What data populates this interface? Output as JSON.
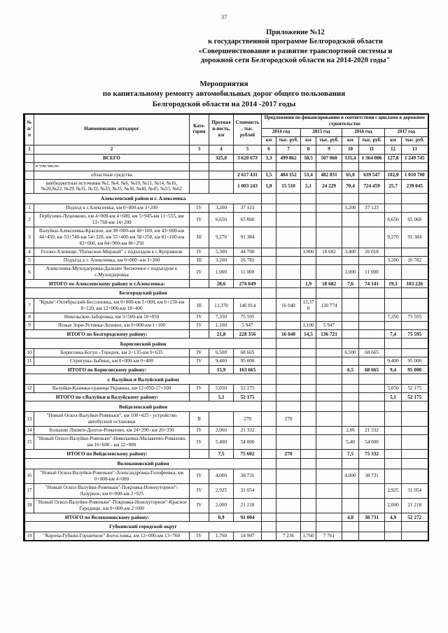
{
  "page": {
    "number": "37"
  },
  "header": {
    "appendix_lines": [
      "Приложение №12",
      "к государственной программе Белгородской области",
      "«Совершенствование и развитие транспортной системы и",
      "дорожной сети  Белгородской области на 2014-2020 годы\""
    ],
    "title_lines": [
      "Мероприятия",
      "по капитальному ремонту автомобильных дорог общего пользования",
      "Белгородской области на 2014 -2017 годы"
    ]
  },
  "table": {
    "headers": {
      "num": "№ п/п",
      "name": "Наименование автодорог",
      "category": "Кате-гория",
      "length": "Протяжен-ность, км",
      "cost": "Стоимость, тыс. рублей",
      "finance_group": "Предложения по финансированию в соответствии с циклами в дорожном строительстве",
      "years": [
        "2014 год",
        "2015 год",
        "2016 год",
        "2017 год"
      ],
      "km": "км",
      "rub": "тыс. руб.",
      "col_numbers": [
        "1",
        "2",
        "3",
        "4",
        "5",
        "6",
        "7",
        "8",
        "9",
        "10",
        "11",
        "12",
        "13"
      ]
    },
    "rows": [
      {
        "type": "total",
        "num": "",
        "name": "ВСЕГО",
        "cat": "",
        "len": "325,0",
        "cost": "3 620 673",
        "y2014": [
          "3,3",
          "499 862"
        ],
        "y2015": [
          "58,5",
          "507 060"
        ],
        "y2016": [
          "135,4",
          "1 364 006"
        ],
        "y2017": [
          "127,8",
          "1 249 745"
        ]
      },
      {
        "type": "note",
        "name": "в том числе:"
      },
      {
        "type": "sub",
        "name": "областные средства",
        "cost": "2 617 431",
        "y2014": [
          "1,5",
          "484 352"
        ],
        "y2015": [
          "53,4",
          "482 831"
        ],
        "y2016": [
          "65,0",
          "639 547"
        ],
        "y2017": [
          "102,0",
          "1 010 700"
        ]
      },
      {
        "type": "sub",
        "name": "внебюджетные источники №1, №4, №6, №10, №11, №14, №16, №20,№22, №29, №31, №32, №33, №35, №36, №40, №45, №55, №62",
        "cost": "1 003 243",
        "y2014": [
          "1,8",
          "15 510"
        ],
        "y2015": [
          "5,1",
          "24 229"
        ],
        "y2016": [
          "70,4",
          "724 459"
        ],
        "y2017": [
          "25,7",
          "239 045"
        ]
      },
      {
        "type": "section",
        "name": "Алексеевский район и г. Алексеевка"
      },
      {
        "type": "data",
        "num": "1",
        "name": "Подход к г.Алексеевка, км 0+000-км 3+200",
        "cat": "IV",
        "len": "3,200",
        "cost": "37 123",
        "y2016": [
          "3,200",
          "37 123"
        ]
      },
      {
        "type": "data",
        "num": "2",
        "name": "Гербузово-Луценково, км 4+000-км 4+600, км 5+945-км 11+555, км 13+760-км 14+200",
        "cat": "IV",
        "len": "6,650",
        "cost": "65 060",
        "y2017": [
          "6,650",
          "65 060"
        ]
      },
      {
        "type": "data",
        "num": "3",
        "name": "Валуйки-Алексеевка-Красное,  км 38+000-км 40+100, км 43+000-км 44+450, км 53+740-км 54+320, км 55+400-км 58+250, км 81+100-км 82+060, км 84+900-км 86+250",
        "cat": "III",
        "len": "9,270",
        "cost": "91 384",
        "y2017": [
          "9,270",
          "91 384"
        ]
      },
      {
        "type": "data",
        "num": "4",
        "name": "Гезово-Хлевище-\"Попасное-Мирный\" с подъездом к с.Куприянов",
        "cat": "IV",
        "len": "5,300",
        "cost": "44 700",
        "y2015": [
          "1,900",
          "18 682"
        ],
        "y2016": [
          "3,400",
          "26 018"
        ]
      },
      {
        "type": "data",
        "num": "5",
        "name": "Подъезд к г. Алексеевка, км 0+000 -км 3+200",
        "cat": "III",
        "len": "3,200",
        "cost": "26 782",
        "y2017": [
          "3,200",
          "26 782"
        ]
      },
      {
        "type": "data",
        "num": "6",
        "name": "Алексеевка-Мухоудеровка-Дальнее Чесночное с подъездом к с.Мухоудеровка",
        "cat": "IV",
        "len": "1,000",
        "cost": "11 000",
        "y2016": [
          "1,000",
          "11 000"
        ]
      },
      {
        "type": "itogo",
        "name": "ИТОГО по Алексеевскому району и г.Алексеевка:",
        "len": "28,6",
        "cost": "276 049",
        "y2015": [
          "1,9",
          "18 682"
        ],
        "y2016": [
          "7,6",
          "74 141"
        ],
        "y2017": [
          "19,1",
          "183 226"
        ]
      },
      {
        "type": "section",
        "name": "Белгородский район"
      },
      {
        "type": "data",
        "num": "7",
        "name": "\"Крым\"-Октябрьский-Бессоновка, км 0+000-км 5+000, км 6+150-км 8+120, км 12+000-км 18+400",
        "cat": "III",
        "len": "13,370",
        "cost": "146 814",
        "y2014": [
          "",
          "16 040"
        ],
        "y2015": [
          "13,370",
          "130 774"
        ]
      },
      {
        "type": "data",
        "num": "8",
        "name": "Никольское-Заборовка, км 3+500-км 10+850",
        "cat": "IV",
        "len": "7,350",
        "cost": "75 595",
        "y2017": [
          "7,350",
          "75 595"
        ]
      },
      {
        "type": "data",
        "num": "9",
        "name": "Ясные Зори-Устинка-Лозовое, км 0+000-км 1+100",
        "cat": "IV",
        "len": "1,100",
        "cost": "5 947",
        "y2015": [
          "1,100",
          "5 947"
        ]
      },
      {
        "type": "itogo",
        "name": "ИТОГО  по Белгородскому району:",
        "len": "21,8",
        "cost": "228 356",
        "y2014": [
          "",
          "16 040"
        ],
        "y2015": [
          "14,5",
          "136 721"
        ],
        "y2017": [
          "7,4",
          "75 595"
        ]
      },
      {
        "type": "section",
        "name": "Борисовский район"
      },
      {
        "type": "data",
        "num": "10",
        "name": "Борисовка-Богун - Городок, км 3+135-км 9+635",
        "cat": "IV",
        "len": "6,500",
        "cost": "68 665",
        "y2016": [
          "6,500",
          "68 665"
        ]
      },
      {
        "type": "data",
        "num": "11",
        "name": "Стригуны-Зыбино, км 0+000-км 9+400",
        "cat": "IV",
        "len": "9,400",
        "cost": "95 000",
        "y2017": [
          "9,400",
          "95 000"
        ]
      },
      {
        "type": "itogo",
        "name": "ИТОГО  по Борисовскому району:",
        "len": "15,9",
        "cost": "163 665",
        "y2016": [
          "6,5",
          "68 665"
        ],
        "y2017": [
          "9,4",
          "95 000"
        ]
      },
      {
        "type": "section",
        "name": "г. Валуйки и Валуйский район"
      },
      {
        "type": "data",
        "num": "12",
        "name": "Валуйки-Казинка-граница Украины, км 12+050-17+100",
        "cat": "IV",
        "len": "5,050",
        "cost": "52 175",
        "y2017": [
          "5,050",
          "52 175"
        ]
      },
      {
        "type": "itogo",
        "name": "ИТОГО по г.Валуйки и Валуйскому  району:",
        "len": "5,1",
        "cost": "52 175",
        "y2017": [
          "5,1",
          "52 175"
        ]
      },
      {
        "type": "section",
        "name": "Вейделевский район"
      },
      {
        "type": "data",
        "num": "13",
        "name": "\"Новый Оскол-Валуйки-Ровеньки\", км 100+425 - устройство автобусной остановки",
        "cat": "II",
        "len": "",
        "cost": "270",
        "y2014": [
          "",
          "270"
        ]
      },
      {
        "type": "data",
        "num": "14",
        "name": "Большие Липяги-Долгое-Ромахово, км 24+290- км 26+350",
        "cat": "IV",
        "len": "2,060",
        "cost": "21 332",
        "y2016": [
          "2,06",
          "21 332"
        ]
      },
      {
        "type": "data",
        "num": "15",
        "name": "\"Новый Оскол-Валуйки-Ровеньки\"-Николаевка-Малакеево-Ромахово, км 16+600 - км 22+000",
        "cat": "IV",
        "len": "5,400",
        "cost": "54 000",
        "y2016": [
          "5,40",
          "54 000"
        ]
      },
      {
        "type": "itogo",
        "name": "ИТОГО по Вейделевскому  району:",
        "len": "7,5",
        "cost": "75 602",
        "y2014": [
          "",
          "270"
        ],
        "y2016": [
          "7,5",
          "75 332"
        ]
      },
      {
        "type": "section",
        "name": "Волоконовский район"
      },
      {
        "type": "data",
        "num": "16",
        "name": "\"Новый Оскол-Валуйки-Ровеньки\"-Александровка-Голофеевка, км 0+000-км 4+000",
        "cat": "IV",
        "len": "4,000",
        "cost": "38 731",
        "y2016": [
          "4,000",
          "38 731"
        ]
      },
      {
        "type": "data",
        "num": "17",
        "name": "\"Новый Оскол-Валуйки-Ровеньки\"-Покровка-Новохуторное\"-Лазурное, км 0+000-км 2+925",
        "cat": "IV",
        "len": "2,925",
        "cost": "31 054",
        "y2017": [
          "2,925",
          "31 054"
        ]
      },
      {
        "type": "data",
        "num": "18",
        "name": "\"Новый Оскол-Валуйки-Ровеньки\"-Покровка-Новохуторное\"-Красное Городище,  км 0+000-км 2+000",
        "cat": "IV",
        "len": "2,000",
        "cost": "21 218",
        "y2017": [
          "2,000",
          "21 218"
        ]
      },
      {
        "type": "itogo",
        "name": "ИТОГО по Волоконовскому  району:",
        "len": "8,9",
        "cost": "91 004",
        "y2016": [
          "4,0",
          "38 731"
        ],
        "y2017": [
          "4,9",
          "52 272"
        ]
      },
      {
        "type": "section",
        "name": "Губкинский городской округ"
      },
      {
        "type": "data",
        "num": "19",
        "name": "\"Короча-Губкин-Горшечное\"-Богословка, км 12+000-км 13+760",
        "cat": "IV",
        "len": "1,760",
        "cost": "14 997",
        "y2014": [
          "",
          "7 236"
        ],
        "y2015": [
          "1,760",
          "7 761"
        ]
      }
    ]
  }
}
